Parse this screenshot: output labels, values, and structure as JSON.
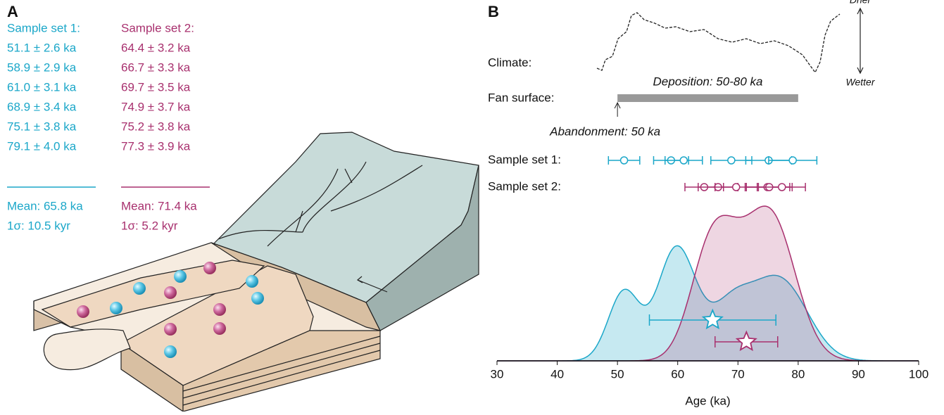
{
  "panel_a": {
    "label": "A",
    "set1": {
      "title": "Sample set 1:",
      "ages": [
        "51.1 ± 2.6 ka",
        "58.9 ± 2.9 ka",
        "61.0 ± 3.1 ka",
        "68.9 ± 3.4 ka",
        "75.1 ± 3.8 ka",
        "79.1 ± 4.0 ka"
      ],
      "mean": "Mean: 65.8 ka",
      "sigma": "1σ: 10.5 kyr"
    },
    "set2": {
      "title": "Sample set 2:",
      "ages": [
        "64.4 ± 3.2 ka",
        "66.7 ± 3.3 ka",
        "69.7 ± 3.5 ka",
        "74.9 ± 3.7 ka",
        "75.2 ± 3.8 ka",
        "77.3 ± 3.9 ka"
      ],
      "mean": "Mean: 71.4 ka",
      "sigma": "1σ: 5.2 kyr"
    }
  },
  "chart_data": {
    "type": "density",
    "panel_label": "B",
    "xlabel": "Age (ka)",
    "xlim": [
      30,
      100
    ],
    "xticks": [
      30,
      40,
      50,
      60,
      70,
      80,
      90,
      100
    ],
    "climate_label": "Climate:",
    "drier_label": "Drier",
    "wetter_label": "Wetter",
    "fan_surface_label": "Fan surface:",
    "deposition_label": "Deposition: 50-80 ka",
    "deposition_range": [
      50,
      80
    ],
    "abandonment_label": "Abandonment: 50 ka",
    "abandonment_age": 50,
    "series": [
      {
        "name": "Sample set 1:",
        "color": "#1ba7c9",
        "values": [
          51.1,
          58.9,
          61.0,
          68.9,
          75.1,
          79.1
        ],
        "errors": [
          2.6,
          2.9,
          3.1,
          3.4,
          3.8,
          4.0
        ],
        "mean": 65.8,
        "sigma": 10.5
      },
      {
        "name": "Sample set 2:",
        "color": "#a8306e",
        "values": [
          64.4,
          66.7,
          69.7,
          74.9,
          75.2,
          77.3
        ],
        "errors": [
          3.2,
          3.3,
          3.5,
          3.7,
          3.8,
          3.9
        ],
        "mean": 71.4,
        "sigma": 5.2
      }
    ]
  }
}
